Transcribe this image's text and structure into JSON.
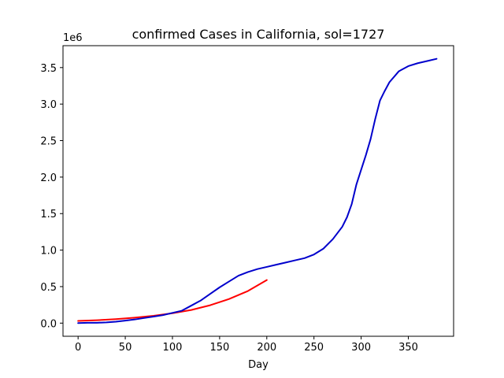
{
  "chart_data": {
    "type": "line",
    "title": "confirmed Cases in California, sol=1727",
    "xlabel": "Day",
    "ylabel": "",
    "y_offset_text": "1e6",
    "xlim": [
      -16,
      398
    ],
    "ylim": [
      -0.18,
      3.8
    ],
    "xticks": [
      0,
      50,
      100,
      150,
      200,
      250,
      300,
      350
    ],
    "xtick_labels": [
      "0",
      "50",
      "100",
      "150",
      "200",
      "250",
      "300",
      "350"
    ],
    "yticks": [
      0.0,
      0.5,
      1.0,
      1.5,
      2.0,
      2.5,
      3.0,
      3.5
    ],
    "ytick_labels": [
      "0.0",
      "0.5",
      "1.0",
      "1.5",
      "2.0",
      "2.5",
      "3.0",
      "3.5"
    ],
    "grid": false,
    "series": [
      {
        "color": "#ff0000",
        "x": [
          0,
          20,
          40,
          60,
          80,
          100,
          120,
          140,
          160,
          180,
          200
        ],
        "y": [
          0.03,
          0.04,
          0.055,
          0.075,
          0.1,
          0.135,
          0.18,
          0.245,
          0.33,
          0.44,
          0.59
        ]
      },
      {
        "color": "#0000cc",
        "x": [
          0,
          10,
          20,
          30,
          40,
          50,
          60,
          70,
          80,
          90,
          100,
          110,
          120,
          130,
          140,
          150,
          160,
          170,
          180,
          190,
          200,
          210,
          220,
          230,
          240,
          250,
          260,
          270,
          280,
          285,
          290,
          295,
          300,
          305,
          310,
          315,
          320,
          325,
          330,
          340,
          350,
          360,
          370,
          380
        ],
        "y": [
          0.0,
          0.005,
          0.005,
          0.01,
          0.02,
          0.035,
          0.05,
          0.07,
          0.09,
          0.11,
          0.14,
          0.17,
          0.24,
          0.31,
          0.4,
          0.49,
          0.57,
          0.65,
          0.7,
          0.74,
          0.77,
          0.8,
          0.83,
          0.86,
          0.89,
          0.94,
          1.02,
          1.15,
          1.32,
          1.45,
          1.63,
          1.9,
          2.1,
          2.3,
          2.52,
          2.8,
          3.05,
          3.18,
          3.3,
          3.45,
          3.52,
          3.56,
          3.59,
          3.62
        ]
      }
    ]
  }
}
